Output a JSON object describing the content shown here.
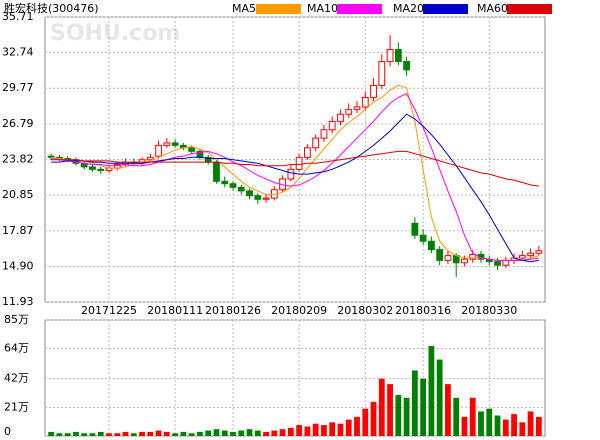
{
  "chart_data": {
    "type": "candlestick",
    "title": "胜宏科技(300476)",
    "watermark": "SOHU.com",
    "categories": [
      null,
      null,
      null,
      null,
      null,
      null,
      null,
      "20171225",
      null,
      null,
      null,
      null,
      null,
      null,
      null,
      "20180111",
      null,
      null,
      null,
      null,
      null,
      null,
      "20180126",
      null,
      null,
      null,
      null,
      null,
      null,
      null,
      "20180209",
      null,
      null,
      null,
      null,
      null,
      null,
      null,
      "20180302",
      null,
      null,
      null,
      null,
      null,
      null,
      "20180316",
      null,
      null,
      null,
      null,
      null,
      null,
      null,
      "20180330",
      null,
      null,
      null,
      null,
      null,
      null
    ],
    "open": [
      24.1,
      24.0,
      23.9,
      23.8,
      23.5,
      23.2,
      23.0,
      22.9,
      23.1,
      23.4,
      23.6,
      23.5,
      23.8,
      24.1,
      25.0,
      25.2,
      25.0,
      24.8,
      24.5,
      24.0,
      23.6,
      22.0,
      21.8,
      21.5,
      21.2,
      20.8,
      20.5,
      20.6,
      21.3,
      22.2,
      23.0,
      24.0,
      24.8,
      25.6,
      26.3,
      27.0,
      27.6,
      28.0,
      28.2,
      29.0,
      30.0,
      32.0,
      33.0,
      32.0,
      18.5,
      17.5,
      17.0,
      16.3,
      15.4,
      15.8,
      15.2,
      15.5,
      15.9,
      15.5,
      15.3,
      15.0,
      15.4,
      15.6,
      15.8,
      16.0
    ],
    "high": [
      24.3,
      24.2,
      24.1,
      24.0,
      23.7,
      23.4,
      23.2,
      23.3,
      23.6,
      23.9,
      23.9,
      24.0,
      24.3,
      25.4,
      25.6,
      25.5,
      25.2,
      25.0,
      24.7,
      24.2,
      23.8,
      22.4,
      22.0,
      21.7,
      21.4,
      21.0,
      20.9,
      21.6,
      22.5,
      23.4,
      24.3,
      25.1,
      25.9,
      26.7,
      27.4,
      28.0,
      28.5,
      28.7,
      29.5,
      30.6,
      32.6,
      34.2,
      33.6,
      32.4,
      19.0,
      18.0,
      17.4,
      16.6,
      16.2,
      16.0,
      15.8,
      16.3,
      16.2,
      15.8,
      15.6,
      15.7,
      16.0,
      16.2,
      16.4,
      16.6
    ],
    "low": [
      23.8,
      23.7,
      23.6,
      23.3,
      23.0,
      22.8,
      22.6,
      22.7,
      22.9,
      23.2,
      23.3,
      23.3,
      23.6,
      23.9,
      24.8,
      24.8,
      24.6,
      24.3,
      23.8,
      23.4,
      21.8,
      21.5,
      21.2,
      20.9,
      20.5,
      20.1,
      20.2,
      20.4,
      21.1,
      22.0,
      22.8,
      23.8,
      24.5,
      25.3,
      26.0,
      26.7,
      27.3,
      27.7,
      27.9,
      28.7,
      29.7,
      31.6,
      31.7,
      30.8,
      17.2,
      16.7,
      16.0,
      15.0,
      15.1,
      14.0,
      14.9,
      15.2,
      15.2,
      15.0,
      14.6,
      14.8,
      15.1,
      15.4,
      15.6,
      15.8
    ],
    "close": [
      24.0,
      23.9,
      23.8,
      23.5,
      23.2,
      23.0,
      22.9,
      23.1,
      23.4,
      23.6,
      23.5,
      23.8,
      24.0,
      25.0,
      25.2,
      25.0,
      24.8,
      24.5,
      24.0,
      23.6,
      22.0,
      21.8,
      21.5,
      21.2,
      20.8,
      20.5,
      20.6,
      21.3,
      22.2,
      23.0,
      24.0,
      24.8,
      25.6,
      26.3,
      27.0,
      27.6,
      28.0,
      28.2,
      29.0,
      30.0,
      32.0,
      33.0,
      32.0,
      31.3,
      17.5,
      17.0,
      16.3,
      15.4,
      15.8,
      15.2,
      15.5,
      15.9,
      15.5,
      15.3,
      15.0,
      15.4,
      15.6,
      15.8,
      16.0,
      16.2
    ],
    "volume": [
      3,
      2,
      2,
      3,
      2,
      2,
      3,
      2,
      2,
      3,
      2,
      3,
      3,
      4,
      3,
      2,
      3,
      2,
      3,
      4,
      5,
      4,
      3,
      4,
      5,
      4,
      3,
      4,
      5,
      6,
      8,
      7,
      9,
      8,
      10,
      9,
      12,
      14,
      20,
      25,
      42,
      38,
      30,
      28,
      48,
      42,
      66,
      56,
      38,
      28,
      14,
      28,
      18,
      20,
      15,
      12,
      16,
      10,
      18,
      14
    ],
    "up_color": "#ff0000",
    "down_color": "#008000",
    "series": [
      {
        "name": "MA5",
        "color": "#ff9900",
        "values": [
          24.0,
          23.9,
          23.8,
          23.7,
          23.7,
          23.5,
          23.3,
          23.1,
          23.1,
          23.2,
          23.4,
          23.5,
          23.7,
          24.0,
          24.3,
          24.6,
          24.8,
          24.9,
          24.7,
          24.4,
          23.8,
          23.2,
          22.6,
          22.0,
          21.5,
          21.2,
          20.9,
          20.9,
          21.1,
          21.5,
          22.2,
          23.1,
          23.9,
          24.7,
          25.5,
          26.3,
          26.9,
          27.4,
          28.0,
          28.6,
          29.0,
          29.6,
          30.0,
          29.8,
          27.0,
          23.0,
          19.0,
          17.0,
          16.2,
          15.8,
          15.6,
          15.6,
          15.6,
          15.5,
          15.4,
          15.4,
          15.4,
          15.4,
          15.6,
          15.8
        ]
      },
      {
        "name": "MA10",
        "color": "#ff00ff",
        "values": [
          23.9,
          23.8,
          23.7,
          23.6,
          23.5,
          23.4,
          23.4,
          23.3,
          23.3,
          23.4,
          23.3,
          23.3,
          23.4,
          23.6,
          23.8,
          24.0,
          24.1,
          24.3,
          24.4,
          24.5,
          24.3,
          24.0,
          23.6,
          23.3,
          22.9,
          22.5,
          22.2,
          21.9,
          21.7,
          21.6,
          21.7,
          22.0,
          22.4,
          22.9,
          23.5,
          24.2,
          24.9,
          25.6,
          26.3,
          27.0,
          27.8,
          28.5,
          29.0,
          29.3,
          28.0,
          26.5,
          24.8,
          23.0,
          21.2,
          19.5,
          17.5,
          16.0,
          15.6,
          15.5,
          15.4,
          15.4,
          15.4,
          15.4,
          15.5,
          15.6
        ]
      },
      {
        "name": "MA20",
        "color": "#0000cc",
        "values": [
          23.6,
          23.6,
          23.7,
          23.7,
          23.7,
          23.6,
          23.6,
          23.5,
          23.5,
          23.5,
          23.5,
          23.5,
          23.6,
          23.7,
          23.8,
          23.9,
          23.9,
          24.0,
          24.0,
          23.9,
          23.9,
          23.9,
          23.8,
          23.7,
          23.6,
          23.5,
          23.3,
          23.1,
          22.9,
          22.7,
          22.6,
          22.6,
          22.7,
          22.8,
          23.0,
          23.3,
          23.6,
          24.0,
          24.5,
          25.0,
          25.6,
          26.2,
          26.9,
          27.6,
          27.2,
          26.6,
          25.9,
          25.1,
          24.2,
          23.3,
          22.3,
          21.3,
          20.3,
          19.2,
          18.0,
          16.8,
          15.6,
          15.4,
          15.3,
          15.4
        ]
      },
      {
        "name": "MA60",
        "color": "#dd0000",
        "values": [
          23.8,
          23.8,
          23.8,
          23.8,
          23.7,
          23.7,
          23.7,
          23.7,
          23.6,
          23.6,
          23.6,
          23.6,
          23.6,
          23.6,
          23.6,
          23.6,
          23.6,
          23.6,
          23.6,
          23.6,
          23.6,
          23.5,
          23.5,
          23.4,
          23.4,
          23.3,
          23.3,
          23.3,
          23.3,
          23.4,
          23.4,
          23.5,
          23.5,
          23.6,
          23.7,
          23.8,
          23.9,
          24.0,
          24.1,
          24.2,
          24.3,
          24.4,
          24.5,
          24.5,
          24.3,
          24.1,
          23.9,
          23.7,
          23.5,
          23.3,
          23.1,
          22.9,
          22.7,
          22.6,
          22.4,
          22.2,
          22.1,
          21.9,
          21.7,
          21.6
        ]
      }
    ],
    "ylim": [
      11.93,
      35.71
    ],
    "yticks": [
      11.93,
      {
        "value": 14.9,
        "label": "14.90"
      },
      17.87,
      20.85,
      23.82,
      26.79,
      29.77,
      32.74,
      35.71
    ],
    "volume_ylim": [
      0,
      85
    ],
    "volume_yticks": [
      0,
      {
        "value": 21,
        "label": "21万"
      },
      {
        "value": 42,
        "label": "42万"
      },
      {
        "value": 64,
        "label": "64万"
      },
      {
        "value": 85,
        "label": "85万"
      }
    ],
    "grid": true
  }
}
